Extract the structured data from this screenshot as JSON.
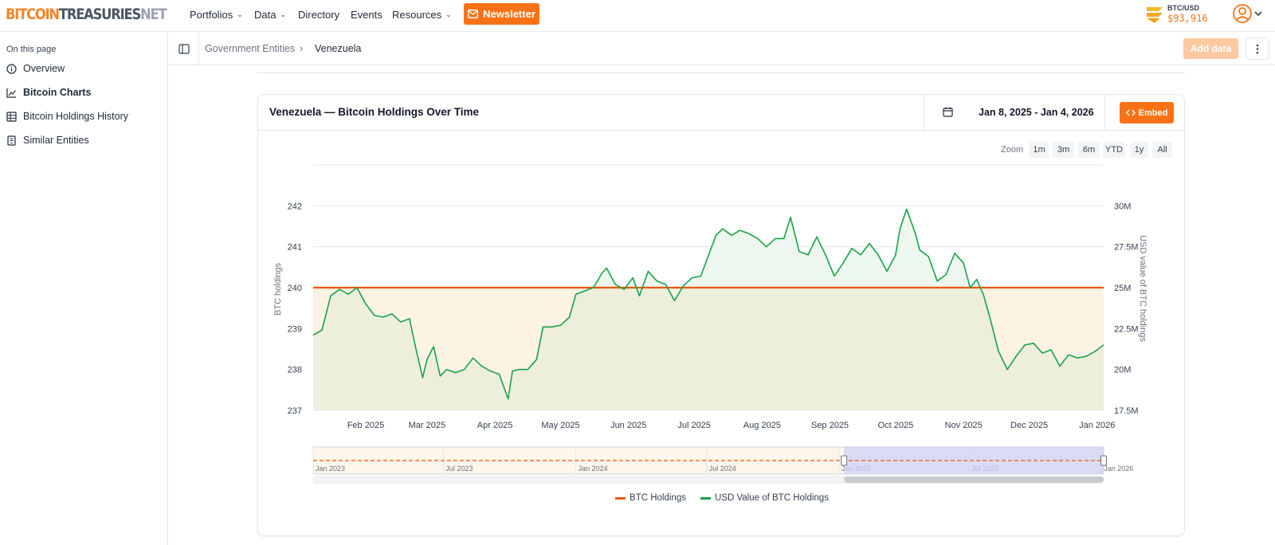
{
  "brand": {
    "logo_part1": "BITCOIN",
    "logo_part2": "TREASURIES",
    "logo_part3": "NET"
  },
  "topnav": {
    "items": [
      {
        "label": "Portfolios",
        "has_dropdown": true
      },
      {
        "label": "Data",
        "has_dropdown": true
      },
      {
        "label": "Directory",
        "has_dropdown": false
      },
      {
        "label": "Events",
        "has_dropdown": false
      },
      {
        "label": "Resources",
        "has_dropdown": true
      }
    ],
    "newsletter_label": "Newsletter",
    "btc_label": "BTC/USD",
    "btc_price": "$93,916"
  },
  "sidebar": {
    "title": "On this page",
    "items": [
      {
        "label": "Overview",
        "icon": "info-icon",
        "active": false
      },
      {
        "label": "Bitcoin Charts",
        "icon": "chart-line-icon",
        "active": true
      },
      {
        "label": "Bitcoin Holdings History",
        "icon": "table-icon",
        "active": false
      },
      {
        "label": "Similar Entities",
        "icon": "building-icon",
        "active": false
      }
    ]
  },
  "breadcrumb": {
    "parent": "Government Entities",
    "separator": "›",
    "current": "Venezuela"
  },
  "actions": {
    "add_data_label": "Add data"
  },
  "card": {
    "title": "Venezuela — Bitcoin Holdings Over Time",
    "date_range": "Jan 8, 2025 - Jan 4, 2026",
    "embed_label": "Embed"
  },
  "zoom": {
    "label": "Zoom",
    "options": [
      "1m",
      "3m",
      "6m",
      "YTD",
      "1y",
      "All"
    ]
  },
  "colors": {
    "accent": "#f97316",
    "holdings_line": "#ea580c",
    "usd_line": "#16a34a",
    "usd_fill_above": "#eef7ef",
    "holdings_fill": "#fdf3e4",
    "navigator_mask": "#cdd2f8"
  },
  "chart_data": {
    "type": "line",
    "title": "Venezuela — Bitcoin Holdings Over Time",
    "x_ticks": [
      "Feb 2025",
      "Mar 2025",
      "Apr 2025",
      "May 2025",
      "Jun 2025",
      "Jul 2025",
      "Aug 2025",
      "Sep 2025",
      "Oct 2025",
      "Nov 2025",
      "Dec 2025",
      "Jan 2026"
    ],
    "x_range": [
      "2025-01-08",
      "2026-01-04"
    ],
    "y_left": {
      "label": "BTC holdings",
      "ticks": [
        "237",
        "238",
        "239",
        "240",
        "241",
        "242"
      ],
      "range": [
        237,
        243
      ]
    },
    "y_right": {
      "label": "USD value of BTC holdings",
      "ticks": [
        "17.5M",
        "20M",
        "22.5M",
        "25M",
        "27.5M",
        "30M"
      ],
      "range": [
        17500000,
        32500000
      ]
    },
    "series": [
      {
        "name": "BTC Holdings",
        "axis": "left",
        "x": [
          "2025-01-08",
          "2026-01-04"
        ],
        "values": [
          240,
          240
        ]
      },
      {
        "name": "USD Value of BTC Holdings",
        "axis": "right",
        "x": [
          "2025-01-08",
          "2025-01-12",
          "2025-01-16",
          "2025-01-20",
          "2025-01-24",
          "2025-01-28",
          "2025-02-01",
          "2025-02-05",
          "2025-02-09",
          "2025-02-13",
          "2025-02-17",
          "2025-02-21",
          "2025-02-24",
          "2025-02-27",
          "2025-03-01",
          "2025-03-04",
          "2025-03-07",
          "2025-03-10",
          "2025-03-14",
          "2025-03-18",
          "2025-03-22",
          "2025-03-26",
          "2025-03-30",
          "2025-04-03",
          "2025-04-07",
          "2025-04-09",
          "2025-04-12",
          "2025-04-16",
          "2025-04-20",
          "2025-04-23",
          "2025-04-27",
          "2025-05-01",
          "2025-05-05",
          "2025-05-08",
          "2025-05-12",
          "2025-05-16",
          "2025-05-20",
          "2025-05-22",
          "2025-05-26",
          "2025-05-30",
          "2025-06-03",
          "2025-06-06",
          "2025-06-10",
          "2025-06-14",
          "2025-06-18",
          "2025-06-22",
          "2025-06-26",
          "2025-06-30",
          "2025-07-04",
          "2025-07-09",
          "2025-07-11",
          "2025-07-14",
          "2025-07-18",
          "2025-07-22",
          "2025-07-26",
          "2025-07-30",
          "2025-08-03",
          "2025-08-07",
          "2025-08-11",
          "2025-08-14",
          "2025-08-18",
          "2025-08-22",
          "2025-08-26",
          "2025-08-30",
          "2025-09-03",
          "2025-09-07",
          "2025-09-11",
          "2025-09-15",
          "2025-09-19",
          "2025-09-23",
          "2025-09-27",
          "2025-10-01",
          "2025-10-03",
          "2025-10-06",
          "2025-10-10",
          "2025-10-12",
          "2025-10-16",
          "2025-10-20",
          "2025-10-24",
          "2025-10-28",
          "2025-11-01",
          "2025-11-04",
          "2025-11-07",
          "2025-11-10",
          "2025-11-13",
          "2025-11-17",
          "2025-11-21",
          "2025-11-25",
          "2025-11-29",
          "2025-12-03",
          "2025-12-07",
          "2025-12-11",
          "2025-12-15",
          "2025-12-19",
          "2025-12-23",
          "2025-12-27",
          "2025-12-31",
          "2026-01-04"
        ],
        "values": [
          22.1,
          22.4,
          24.5,
          24.9,
          24.6,
          25.0,
          24.0,
          23.3,
          23.2,
          23.4,
          22.9,
          23.1,
          21.2,
          19.5,
          20.6,
          21.4,
          19.6,
          20.0,
          19.8,
          20.0,
          20.7,
          20.2,
          19.9,
          19.7,
          18.2,
          19.9,
          20.0,
          20.0,
          20.6,
          22.6,
          22.6,
          22.7,
          23.2,
          24.6,
          24.8,
          25.0,
          25.9,
          26.2,
          25.2,
          24.9,
          25.6,
          24.5,
          26.0,
          25.4,
          25.2,
          24.2,
          25.1,
          25.6,
          25.7,
          27.5,
          28.2,
          28.6,
          28.2,
          28.5,
          28.3,
          28.0,
          27.5,
          28.0,
          28.0,
          29.3,
          27.2,
          27.0,
          28.1,
          27.0,
          25.7,
          26.5,
          27.4,
          27.0,
          27.7,
          27.0,
          26.0,
          27.0,
          28.6,
          29.8,
          28.3,
          27.3,
          26.9,
          25.4,
          25.8,
          27.1,
          26.5,
          25.0,
          25.5,
          24.6,
          23.2,
          21.1,
          20.0,
          20.8,
          21.5,
          21.6,
          21.0,
          21.2,
          20.2,
          20.9,
          20.7,
          20.8,
          21.1,
          21.5
        ]
      }
    ],
    "navigator": {
      "x_ticks": [
        "Jan 2023",
        "Jul 2023",
        "Jan 2024",
        "Jul 2024",
        "Jan 2025",
        "Jul 2025",
        "Jan 2026"
      ],
      "selected_range": [
        "2025-01-08",
        "2026-01-04"
      ]
    },
    "legend": [
      "BTC Holdings",
      "USD Value of BTC Holdings"
    ],
    "legend_position": "bottom-center",
    "grid": true
  }
}
